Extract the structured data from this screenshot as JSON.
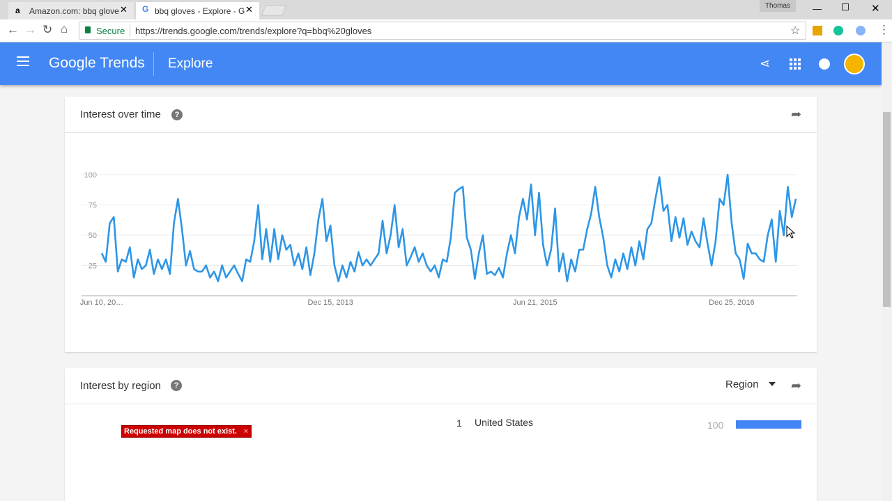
{
  "browser": {
    "tabs": [
      "Amazon.com: bbq glove",
      "bbq gloves - Explore - G"
    ],
    "user": "Thomas",
    "secure": "Secure",
    "url": "https://trends.google.com/trends/explore?q=bbq%20gloves"
  },
  "header": {
    "logo": "Google Trends",
    "page": "Explore"
  },
  "chart_data": {
    "type": "line",
    "title": "Interest over time",
    "color": "#2d96e6",
    "grid": true,
    "values": [
      35,
      28,
      60,
      65,
      20,
      30,
      28,
      40,
      15,
      30,
      22,
      25,
      38,
      18,
      30,
      22,
      30,
      18,
      60,
      80,
      55,
      25,
      37,
      22,
      20,
      20,
      25,
      15,
      20,
      12,
      25,
      15,
      20,
      25,
      18,
      12,
      30,
      28,
      45,
      75,
      30,
      55,
      28,
      55,
      30,
      50,
      38,
      42,
      25,
      35,
      22,
      40,
      17,
      35,
      63,
      80,
      45,
      58,
      25,
      12,
      25,
      15,
      28,
      20,
      36,
      25,
      30,
      25,
      30,
      35,
      62,
      35,
      50,
      75,
      40,
      55,
      25,
      32,
      40,
      28,
      35,
      25,
      20,
      25,
      15,
      30,
      28,
      48,
      85,
      88,
      90,
      48,
      38,
      14,
      35,
      50,
      18,
      20,
      17,
      23,
      15,
      35,
      50,
      35,
      65,
      80,
      63,
      92,
      50,
      85,
      42,
      25,
      38,
      72,
      20,
      35,
      12,
      30,
      20,
      38,
      38,
      55,
      68,
      90,
      65,
      48,
      25,
      15,
      30,
      20,
      35,
      22,
      40,
      25,
      45,
      30,
      55,
      60,
      80,
      98,
      70,
      75,
      45,
      65,
      48,
      64,
      42,
      53,
      45,
      40,
      64,
      43,
      25,
      45,
      80,
      75,
      100,
      60,
      35,
      30,
      14,
      43,
      35,
      35,
      30,
      28,
      50,
      63,
      28,
      70,
      50,
      90,
      65,
      80
    ],
    "xlim": [
      0,
      173
    ],
    "xticks": [
      {
        "value": 0,
        "label": "Jun 10, 20…"
      },
      {
        "value": 57,
        "label": "Dec 15, 2013"
      },
      {
        "value": 108,
        "label": "Jun 21, 2015"
      },
      {
        "value": 157,
        "label": "Dec 25, 2016"
      }
    ],
    "ylim": [
      0,
      100
    ],
    "yticks": [
      25,
      50,
      75,
      100
    ]
  },
  "region": {
    "title": "Interest by region",
    "dropdown": "Region",
    "error": "Requested map does not exist.",
    "bar_color": "#4285f4",
    "rows": [
      {
        "rank": 1,
        "name": "United States",
        "value": 100
      }
    ]
  }
}
